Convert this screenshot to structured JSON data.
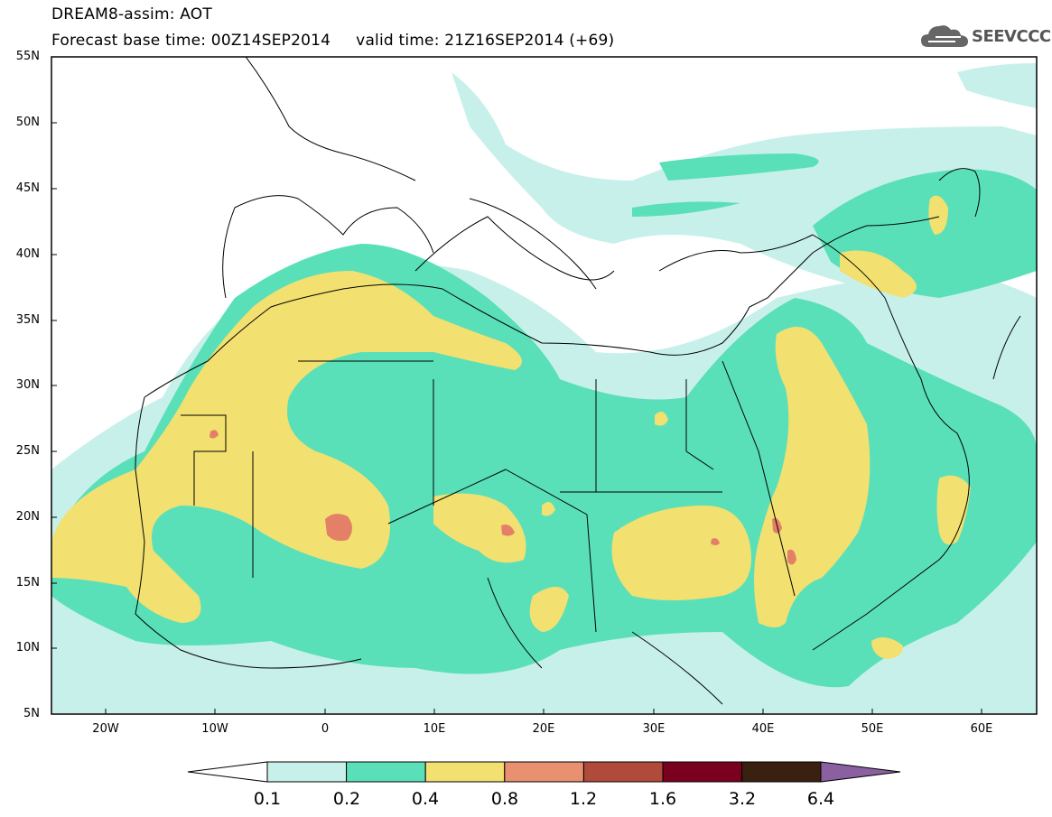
{
  "header": {
    "line1": "DREAM8-assim: AOT",
    "line2": "Forecast base time: 00Z14SEP2014     valid time: 21Z16SEP2014 (+69)",
    "logo_text": "SEEVCCC",
    "logo_icon": "cloud-icon"
  },
  "axes": {
    "lat_labels": [
      "55N",
      "50N",
      "45N",
      "40N",
      "35N",
      "30N",
      "25N",
      "20N",
      "15N",
      "10N",
      "5N"
    ],
    "lon_labels": [
      "20W",
      "10W",
      "0",
      "10E",
      "20E",
      "30E",
      "40E",
      "50E",
      "60E"
    ],
    "lat_range": [
      5,
      55
    ],
    "lon_range": [
      -25,
      65
    ]
  },
  "colorbar": {
    "labels": [
      "0.1",
      "0.2",
      "0.4",
      "0.8",
      "1.2",
      "1.6",
      "3.2",
      "6.4"
    ],
    "colors": [
      "#ffffff",
      "#c8f0ea",
      "#5ae0b8",
      "#f2e070",
      "#e89070",
      "#b04a3a",
      "#7a0020",
      "#3a2010",
      "#8a60a0"
    ]
  },
  "field_colors": {
    "c01": "#c8f0ea",
    "c02": "#5ae0b8",
    "c04": "#f2e070",
    "c08": "#e48068"
  }
}
